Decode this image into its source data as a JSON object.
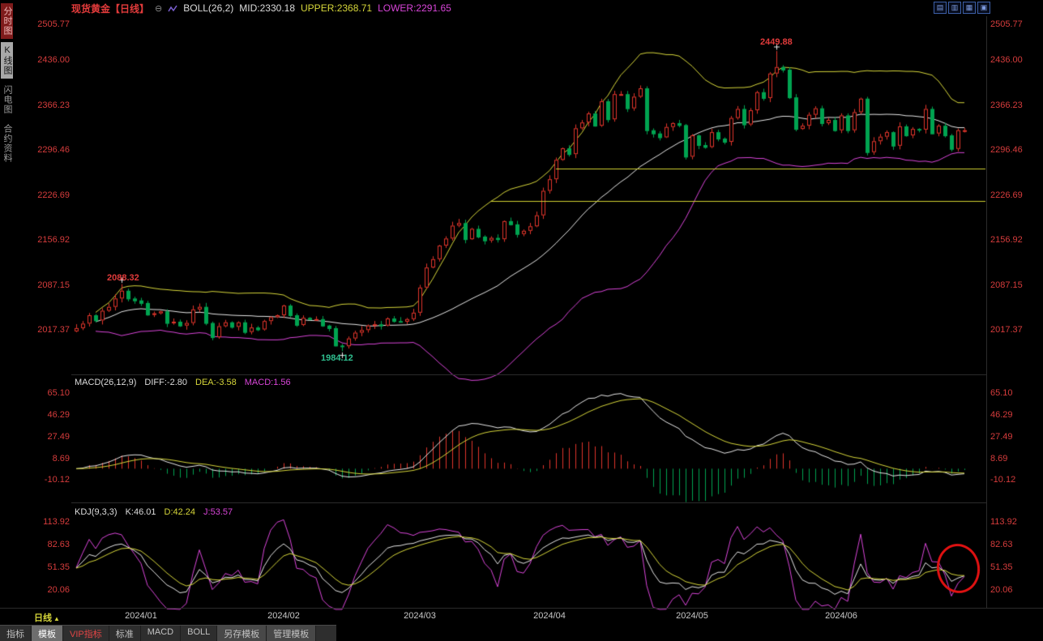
{
  "header": {
    "symbol": "现货黄金",
    "period": "【日线】",
    "boll": "BOLL(26,2)",
    "mid": "MID:2330.18",
    "upper": "UPPER:2368.71",
    "lower": "LOWER:2291.65"
  },
  "icons": {
    "collapse": "⊖",
    "pane1": "▤",
    "pane2": "▥",
    "pane3": "▦",
    "pane4": "▣"
  },
  "sidebar": {
    "items": [
      {
        "label": "分时图"
      },
      {
        "label": "K线图"
      },
      {
        "label": "闪电图"
      },
      {
        "label": "合约资料"
      }
    ]
  },
  "price_axis": {
    "ticks": [
      "2505.77",
      "2436.00",
      "2366.23",
      "2296.46",
      "2226.69",
      "2156.92",
      "2087.15",
      "2017.37"
    ]
  },
  "annotations": {
    "peak": "2449.88",
    "early_peak": "2088.32",
    "trough": "1984.12"
  },
  "macd_panel": {
    "title": "MACD(26,12,9)",
    "diff": "DIFF:-2.80",
    "dea": "DEA:-3.58",
    "macd": "MACD:1.56",
    "ticks": [
      "65.10",
      "46.29",
      "27.49",
      "8.69",
      "-10.12"
    ]
  },
  "kdj_panel": {
    "title": "KDJ(9,3,3)",
    "k": "K:46.01",
    "d": "D:42.24",
    "j": "J:53.57",
    "ticks": [
      "113.92",
      "82.63",
      "51.35",
      "20.06"
    ]
  },
  "x_axis": {
    "labels": [
      "2024/01",
      "2024/02",
      "2024/03",
      "2024/04",
      "2024/05",
      "2024/06"
    ],
    "period_label": "日线",
    "period_arrow": "▲"
  },
  "bottom_bar": {
    "tabs": [
      {
        "label": "指标"
      },
      {
        "label": "模板"
      },
      {
        "label": "VIP指标"
      },
      {
        "label": "标准"
      },
      {
        "label": "MACD"
      },
      {
        "label": "BOLL"
      },
      {
        "label": "另存模板"
      },
      {
        "label": "管理模板"
      }
    ]
  },
  "colors": {
    "up": "#e0352b",
    "down": "#00a350",
    "boll_mid": "#e6e6e6",
    "boll_upper": "#d6d63a",
    "boll_lower": "#d945d9",
    "diff_line": "#e6e6e6",
    "dea_line": "#d6d63a",
    "k_line": "#e6e6e6",
    "d_line": "#d6d63a",
    "j_line": "#d945d9",
    "drawn_line": "#cfcf30",
    "axis_text": "#d63c3c",
    "annotation_circle": "#dd1111"
  },
  "chart_data": {
    "type": "candlestick",
    "title": "现货黄金 日线",
    "closes": [
      2020,
      2027,
      2040,
      2032,
      2047,
      2053,
      2066,
      2078,
      2066,
      2063,
      2059,
      2041,
      2043,
      2046,
      2028,
      2030,
      2024,
      2028,
      2049,
      2053,
      2028,
      2006,
      2023,
      2029,
      2022,
      2029,
      2014,
      2021,
      2018,
      2031,
      2037,
      2040,
      2055,
      2040,
      2025,
      2036,
      2034,
      2034,
      2024,
      2020,
      1993,
      1992,
      2004,
      2013,
      2017,
      2024,
      2026,
      2024,
      2035,
      2031,
      2030,
      2034,
      2044,
      2083,
      2114,
      2127,
      2148,
      2159,
      2179,
      2183,
      2158,
      2174,
      2162,
      2156,
      2160,
      2158,
      2186,
      2181,
      2166,
      2171,
      2178,
      2195,
      2233,
      2251,
      2281,
      2299,
      2290,
      2330,
      2339,
      2353,
      2334,
      2372,
      2344,
      2383,
      2383,
      2361,
      2379,
      2392,
      2327,
      2322,
      2316,
      2332,
      2338,
      2335,
      2286,
      2319,
      2304,
      2301,
      2324,
      2314,
      2309,
      2346,
      2360,
      2336,
      2358,
      2386,
      2377,
      2415,
      2425,
      2421,
      2378,
      2329,
      2334,
      2351,
      2361,
      2338,
      2343,
      2327,
      2350,
      2327,
      2355,
      2376,
      2293,
      2310,
      2317,
      2324,
      2303,
      2333,
      2319,
      2329,
      2328,
      2360,
      2322,
      2334,
      2319,
      2298,
      2327,
      2327
    ],
    "first_open": 2015,
    "month_ticks": [
      {
        "label": "2024/01",
        "index": 10
      },
      {
        "label": "2024/02",
        "index": 32
      },
      {
        "label": "2024/03",
        "index": 53
      },
      {
        "label": "2024/04",
        "index": 73
      },
      {
        "label": "2024/05",
        "index": 95
      },
      {
        "label": "2024/06",
        "index": 118
      }
    ],
    "extremes": [
      {
        "kind": "high",
        "index": 7,
        "value": 2088.32
      },
      {
        "kind": "low",
        "index": 41,
        "value": 1984.12
      },
      {
        "kind": "high",
        "index": 108,
        "value": 2449.88
      }
    ],
    "drawn_lines": [
      {
        "price": 2268,
        "from_index": 74
      },
      {
        "price": 2217,
        "from_index": 64
      }
    ],
    "indicators": {
      "boll": {
        "n": 26,
        "k": 2,
        "mid": 2330.18,
        "upper": 2368.71,
        "lower": 2291.65
      },
      "macd": {
        "fast": 12,
        "slow": 26,
        "signal": 9,
        "diff": -2.8,
        "dea": -3.58,
        "macd": 1.56
      },
      "kdj": {
        "n": 9,
        "m1": 3,
        "m2": 3,
        "k": 46.01,
        "d": 42.24,
        "j": 53.57
      }
    },
    "y_ticks_price": [
      2505.77,
      2436.0,
      2366.23,
      2296.46,
      2226.69,
      2156.92,
      2087.15,
      2017.37
    ],
    "y_ticks_macd": [
      65.1,
      46.29,
      27.49,
      8.69,
      -10.12
    ],
    "y_ticks_kdj": [
      113.92,
      82.63,
      51.35,
      20.06
    ]
  }
}
